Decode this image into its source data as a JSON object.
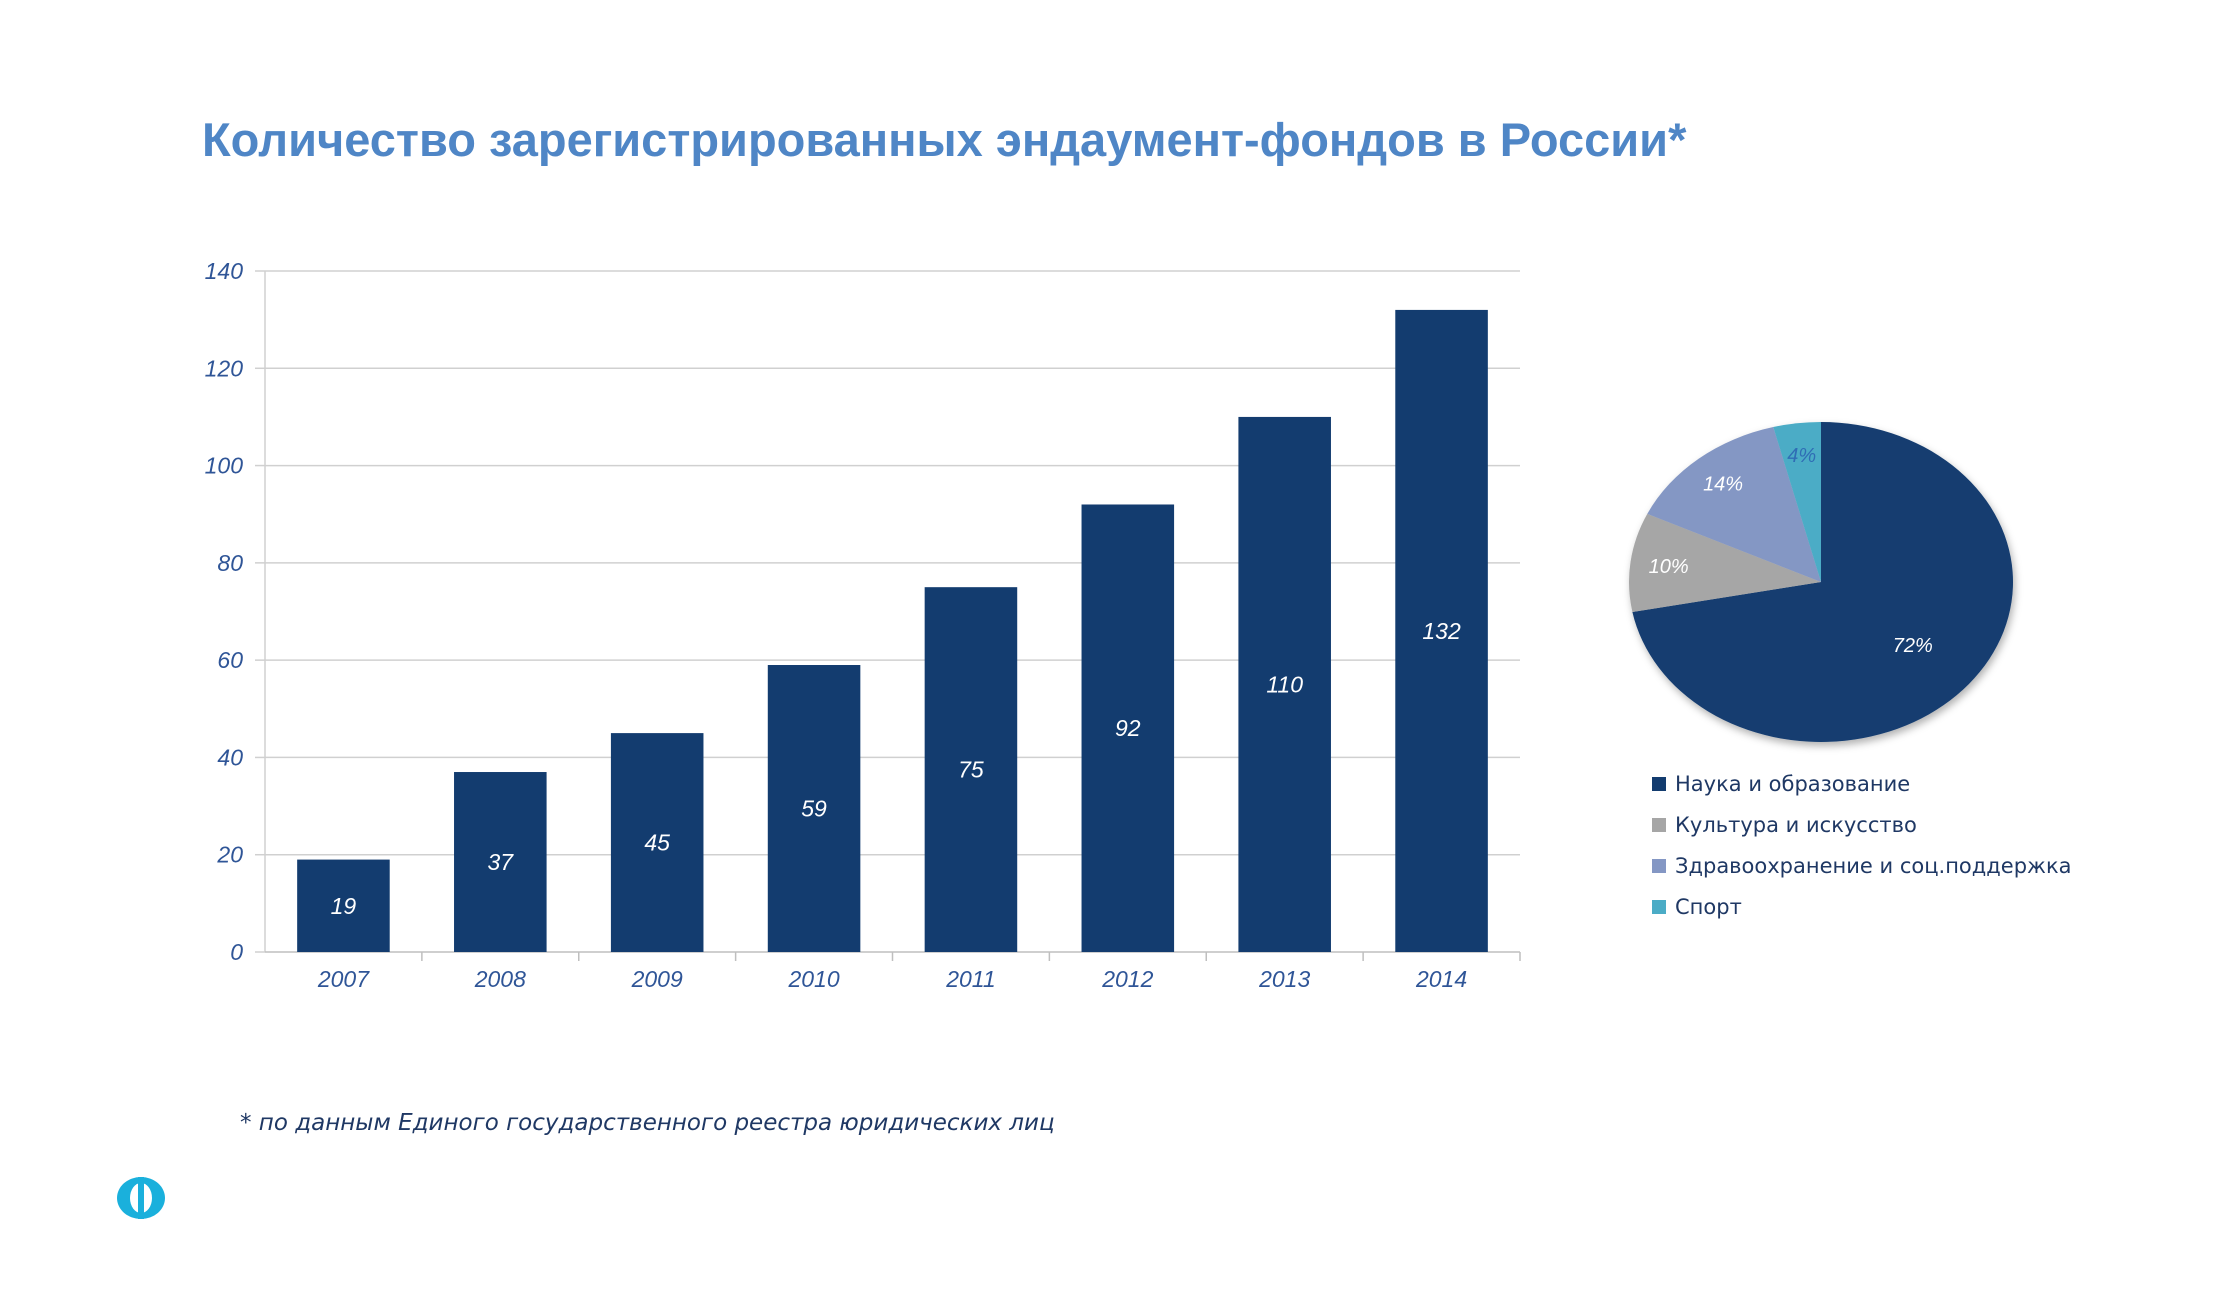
{
  "page": {
    "title": "Количество зарегистрированных эндаумент-фондов в России*",
    "footnote": "* по данным Единого государственного реестра юридических лиц"
  },
  "colors": {
    "title": "#4f86c6",
    "axis_text": "#2f5597",
    "bar": "#133c6f",
    "gridline": "#d0d0d0",
    "footnote": "#1f3864",
    "logo": "#1ab0dc"
  },
  "icons": {
    "logo": "ring-logo-icon"
  },
  "chart_data": [
    {
      "type": "bar",
      "title": "",
      "xlabel": "",
      "ylabel": "",
      "categories": [
        "2007",
        "2008",
        "2009",
        "2010",
        "2011",
        "2012",
        "2013",
        "2014"
      ],
      "values": [
        19,
        37,
        45,
        59,
        75,
        92,
        110,
        132
      ],
      "data_labels": [
        "19",
        "37",
        "45",
        "59",
        "75",
        "92",
        "110",
        "132"
      ],
      "ylim": [
        0,
        140
      ],
      "yticks": [
        "0",
        "20",
        "40",
        "60",
        "80",
        "100",
        "120",
        "140"
      ],
      "grid": true,
      "legend": "none"
    },
    {
      "type": "pie",
      "title": "",
      "legend": "bottom",
      "slices": [
        {
          "name": "Наука и образование",
          "value": 72,
          "label": "72%",
          "color": "#133c6f"
        },
        {
          "name": "Культура и искусство",
          "value": 10,
          "label": "10%",
          "color": "#a6a6a6"
        },
        {
          "name": "Здравоохранение и соц.поддержка",
          "value": 14,
          "label": "14%",
          "color": "#8497c4"
        },
        {
          "name": "Спорт",
          "value": 4,
          "label": "4%",
          "color": "#4bacc6"
        }
      ]
    }
  ]
}
